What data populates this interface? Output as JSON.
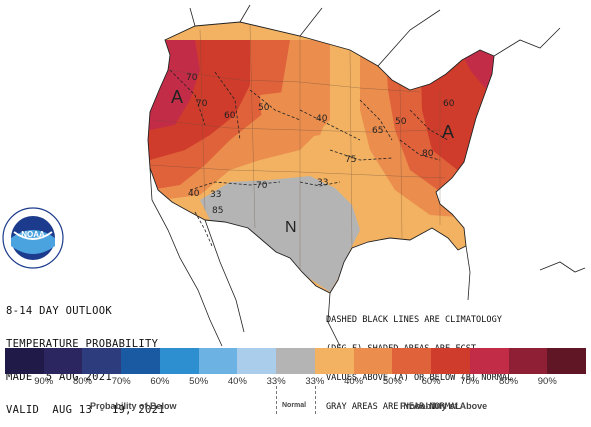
{
  "header": {
    "line1": "8-14 DAY OUTLOOK",
    "line2": "TEMPERATURE PROBABILITY",
    "line3": "MADE  5 AUG 2021",
    "line4": "VALID  AUG 13 - 19, 2021"
  },
  "notes": {
    "line1": "DASHED BLACK LINES ARE CLIMATOLOGY",
    "line2": "(DEG F) SHADED AREAS ARE FCST",
    "line3": "VALUES ABOVE (A) OR BELOW (B) NORMAL",
    "line4": "GRAY AREAS ARE NEAR-NORMAL"
  },
  "logo": {
    "name": "noaa-logo",
    "text": "NOAA"
  },
  "map_labels": {
    "above_west": "A",
    "above_east": "A",
    "normal_south": "N",
    "iso_70_nw": "70",
    "iso_70_w": "70",
    "iso_60_w": "60",
    "iso_50_n": "50",
    "iso_40_n": "40",
    "iso_75": "75",
    "iso_65": "65",
    "iso_60_e": "60",
    "iso_50_e": "50",
    "iso_80_e": "80",
    "iso_33_a": "33",
    "iso_33_b": "33",
    "iso_70_c": "70",
    "iso_85": "85",
    "iso_40_e": "40"
  },
  "legend": {
    "colors": [
      "#201a48",
      "#2c2660",
      "#2d3c7d",
      "#1a5aa3",
      "#2e8fd0",
      "#6cb3e4",
      "#a9cdea",
      "#b4b4b4",
      "#f2b262",
      "#ea8d4d",
      "#e0623a",
      "#d03c2b",
      "#c32c47",
      "#8e1f34",
      "#611626"
    ],
    "ticks": [
      "90%",
      "80%",
      "70%",
      "60%",
      "50%",
      "40%",
      "33%",
      "33%",
      "40%",
      "50%",
      "60%",
      "70%",
      "80%",
      "90%"
    ],
    "below_label": "Probability of Below",
    "normal_label": "Normal",
    "above_label": "Probability of Above"
  },
  "colors": {
    "p33": "#f2b262",
    "p40": "#ea8d4d",
    "p50": "#e0623a",
    "p60": "#d03c2b",
    "p70": "#c32c47",
    "normal": "#b4b4b4"
  }
}
